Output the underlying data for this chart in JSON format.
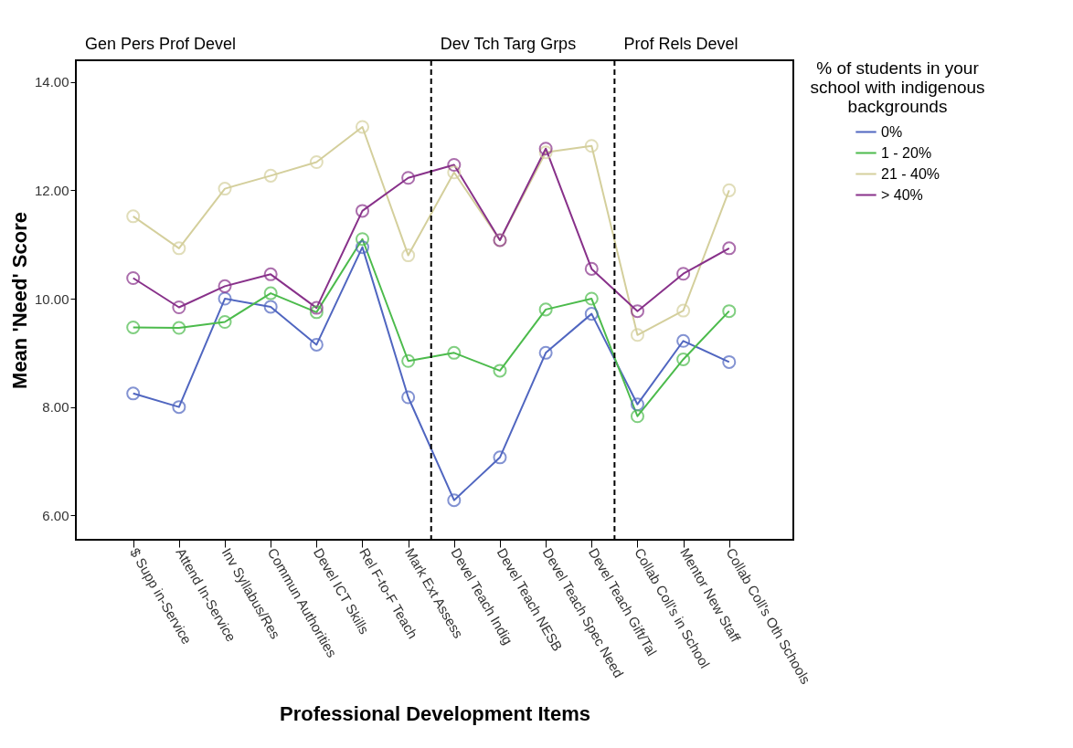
{
  "chart_data": {
    "type": "line",
    "xlabel": "Professional Development Items",
    "ylabel": "Mean 'Need' Score",
    "legend_title": "% of students in your school with indigenous backgrounds",
    "legend": "right",
    "marker": "circle",
    "line_style": "solid",
    "grid": false,
    "categories": [
      "$ Supp in-Service",
      "Attend In-Service",
      "Inv Syllabus/Res",
      "Commun Authorities",
      "Devel ICT Skills",
      "Rel F-to-F Teach",
      "Mark Ext Assess",
      "Devel Teach Indig",
      "Devel Teach NESB",
      "Devel Teach Spec Need",
      "Devel Teach Gift/Tal",
      "Collab Coll's in School",
      "Mentor New Staff",
      "Collab Coll's Oth Schools"
    ],
    "ylim": [
      5.55,
      14.4
    ],
    "yticks": [
      {
        "value": 6,
        "label": "6.00"
      },
      {
        "value": 8,
        "label": "8.00"
      },
      {
        "value": 10,
        "label": "10.00"
      },
      {
        "value": 12,
        "label": "12.00"
      },
      {
        "value": 14,
        "label": "14.00"
      }
    ],
    "series": [
      {
        "name": "0%",
        "color": "#5066c0",
        "values": [
          8.25,
          8.0,
          10.0,
          9.85,
          9.15,
          10.95,
          8.18,
          6.28,
          7.07,
          9.0,
          9.72,
          8.05,
          9.22,
          8.83
        ]
      },
      {
        "name": "1 - 20%",
        "color": "#4cbb4c",
        "values": [
          9.47,
          9.46,
          9.57,
          10.1,
          9.75,
          11.1,
          8.85,
          9.0,
          8.67,
          9.8,
          10.0,
          7.83,
          8.88,
          9.77
        ]
      },
      {
        "name": "21 - 40%",
        "color": "#d4cf9c",
        "values": [
          11.52,
          10.93,
          12.03,
          12.27,
          12.52,
          13.17,
          10.8,
          12.33,
          11.08,
          12.7,
          12.82,
          9.33,
          9.78,
          12.0
        ]
      },
      {
        "name": "> 40%",
        "color": "#88318a",
        "values": [
          10.38,
          9.84,
          10.23,
          10.45,
          9.83,
          11.62,
          12.23,
          12.47,
          11.08,
          12.77,
          10.55,
          9.77,
          10.46,
          10.93
        ]
      }
    ],
    "annotations": [
      "Gen Pers Prof Devel",
      "Dev Tch Targ Grps",
      "Prof Rels Devel"
    ]
  }
}
